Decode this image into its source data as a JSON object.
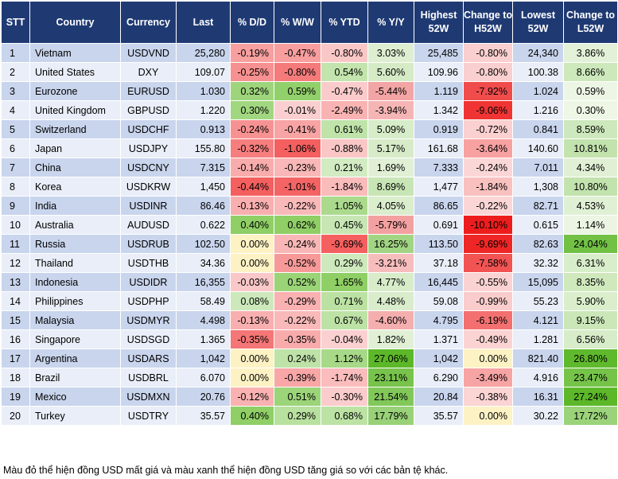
{
  "headers": [
    "STT",
    "Country",
    "Currency",
    "Last",
    "% D/D",
    "% W/W",
    "% YTD",
    "% Y/Y",
    "Highest\n52W",
    "Change to\nH52W",
    "Lowest\n52W",
    "Change to\nL52W"
  ],
  "rows": [
    [
      "1",
      "Vietnam",
      "USDVND",
      "25,280",
      "-0.19%",
      "-0.47%",
      "-0.80%",
      "3.03%",
      "25,485",
      "-0.80%",
      "24,340",
      "3.86%"
    ],
    [
      "2",
      "United States",
      "DXY",
      "109.07",
      "-0.25%",
      "-0.80%",
      "0.54%",
      "5.60%",
      "109.96",
      "-0.80%",
      "100.38",
      "8.66%"
    ],
    [
      "3",
      "Eurozone",
      "EURUSD",
      "1.030",
      "0.32%",
      "0.59%",
      "-0.47%",
      "-5.44%",
      "1.119",
      "-7.92%",
      "1.024",
      "0.59%"
    ],
    [
      "4",
      "United Kingdom",
      "GBPUSD",
      "1.220",
      "0.30%",
      "-0.01%",
      "-2.49%",
      "-3.94%",
      "1.342",
      "-9.06%",
      "1.216",
      "0.30%"
    ],
    [
      "5",
      "Switzerland",
      "USDCHF",
      "0.913",
      "-0.24%",
      "-0.41%",
      "0.61%",
      "5.09%",
      "0.919",
      "-0.72%",
      "0.841",
      "8.59%"
    ],
    [
      "6",
      "Japan",
      "USDJPY",
      "155.80",
      "-0.32%",
      "-1.06%",
      "-0.88%",
      "5.17%",
      "161.68",
      "-3.64%",
      "140.60",
      "10.81%"
    ],
    [
      "7",
      "China",
      "USDCNY",
      "7.315",
      "-0.14%",
      "-0.23%",
      "0.21%",
      "1.69%",
      "7.333",
      "-0.24%",
      "7.011",
      "4.34%"
    ],
    [
      "8",
      "Korea",
      "USDKRW",
      "1,450",
      "-0.44%",
      "-1.01%",
      "-1.84%",
      "8.69%",
      "1,477",
      "-1.84%",
      "1,308",
      "10.80%"
    ],
    [
      "9",
      "India",
      "USDINR",
      "86.46",
      "-0.13%",
      "-0.22%",
      "1.05%",
      "4.05%",
      "86.65",
      "-0.22%",
      "82.71",
      "4.53%"
    ],
    [
      "10",
      "Australia",
      "AUDUSD",
      "0.622",
      "0.40%",
      "0.62%",
      "0.45%",
      "-5.79%",
      "0.691",
      "-10.10%",
      "0.615",
      "1.14%"
    ],
    [
      "11",
      "Russia",
      "USDRUB",
      "102.50",
      "0.00%",
      "-0.24%",
      "-9.69%",
      "16.25%",
      "113.50",
      "-9.69%",
      "82.63",
      "24.04%"
    ],
    [
      "12",
      "Thailand",
      "USDTHB",
      "34.36",
      "0.00%",
      "-0.52%",
      "0.29%",
      "-3.21%",
      "37.18",
      "-7.58%",
      "32.32",
      "6.31%"
    ],
    [
      "13",
      "Indonesia",
      "USDIDR",
      "16,355",
      "-0.03%",
      "0.52%",
      "1.65%",
      "4.77%",
      "16,445",
      "-0.55%",
      "15,095",
      "8.35%"
    ],
    [
      "14",
      "Philippines",
      "USDPHP",
      "58.49",
      "0.08%",
      "-0.29%",
      "0.71%",
      "4.48%",
      "59.08",
      "-0.99%",
      "55.23",
      "5.90%"
    ],
    [
      "15",
      "Malaysia",
      "USDMYR",
      "4.498",
      "-0.13%",
      "-0.22%",
      "0.67%",
      "-4.60%",
      "4.795",
      "-6.19%",
      "4.121",
      "9.15%"
    ],
    [
      "16",
      "Singapore",
      "USDSGD",
      "1.365",
      "-0.35%",
      "-0.35%",
      "-0.04%",
      "1.82%",
      "1.371",
      "-0.49%",
      "1.281",
      "6.56%"
    ],
    [
      "17",
      "Argentina",
      "USDARS",
      "1,042",
      "0.00%",
      "0.24%",
      "1.12%",
      "27.06%",
      "1,042",
      "0.00%",
      "821.40",
      "26.80%"
    ],
    [
      "18",
      "Brazil",
      "USDBRL",
      "6.070",
      "0.00%",
      "-0.39%",
      "-1.74%",
      "23.11%",
      "6.290",
      "-3.49%",
      "4.916",
      "23.47%"
    ],
    [
      "19",
      "Mexico",
      "USDMXN",
      "20.76",
      "-0.12%",
      "0.51%",
      "-0.30%",
      "21.54%",
      "20.84",
      "-0.38%",
      "16.31",
      "27.24%"
    ],
    [
      "20",
      "Turkey",
      "USDTRY",
      "35.57",
      "0.40%",
      "0.29%",
      "0.68%",
      "17.79%",
      "35.57",
      "0.00%",
      "30.22",
      "17.72%"
    ]
  ],
  "footnote": "Màu đỏ thể hiện đồng USD mất giá và màu xanh thể hiện đồng USD tăng giá so với các bản tệ khác.",
  "colors": {
    "header_bg": "#1f3a73",
    "row_odd": "#c9d5ed",
    "row_even": "#e9eef8",
    "neutral": "#fdf2c4"
  }
}
